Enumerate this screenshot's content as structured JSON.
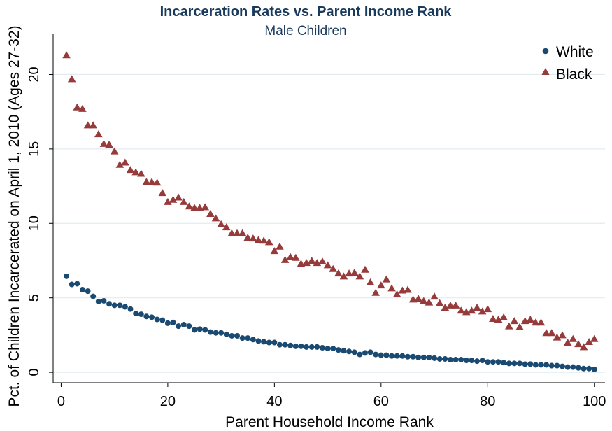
{
  "chart_data": {
    "type": "scatter",
    "title": "Incarceration Rates vs. Parent Income Rank",
    "subtitle": "Male Children",
    "xlabel": "Parent Household Income Rank",
    "ylabel": "Pct. of Children Incarcerated on April 1, 2010 (Ages 27-32)",
    "xlim": [
      -1.5,
      102
    ],
    "ylim": [
      -0.7,
      22.7
    ],
    "xticks": [
      0,
      20,
      40,
      60,
      80,
      100
    ],
    "yticks": [
      0,
      5,
      10,
      15,
      20
    ],
    "grid": true,
    "legend_position": "top-right",
    "colors": {
      "White": "#1a4a72",
      "Black": "#963b3b"
    },
    "series": [
      {
        "name": "White",
        "marker": "circle",
        "x": [
          1,
          2,
          3,
          4,
          5,
          6,
          7,
          8,
          9,
          10,
          11,
          12,
          13,
          14,
          15,
          16,
          17,
          18,
          19,
          20,
          21,
          22,
          23,
          24,
          25,
          26,
          27,
          28,
          29,
          30,
          31,
          32,
          33,
          34,
          35,
          36,
          37,
          38,
          39,
          40,
          41,
          42,
          43,
          44,
          45,
          46,
          47,
          48,
          49,
          50,
          51,
          52,
          53,
          54,
          55,
          56,
          57,
          58,
          59,
          60,
          61,
          62,
          63,
          64,
          65,
          66,
          67,
          68,
          69,
          70,
          71,
          72,
          73,
          74,
          75,
          76,
          77,
          78,
          79,
          80,
          81,
          82,
          83,
          84,
          85,
          86,
          87,
          88,
          89,
          90,
          91,
          92,
          93,
          94,
          95,
          96,
          97,
          98,
          99,
          100
        ],
        "values": [
          6.45,
          5.9,
          5.95,
          5.55,
          5.45,
          5.1,
          4.75,
          4.8,
          4.6,
          4.5,
          4.5,
          4.4,
          4.25,
          3.95,
          3.9,
          3.75,
          3.7,
          3.55,
          3.5,
          3.3,
          3.35,
          3.1,
          3.2,
          3.1,
          2.85,
          2.9,
          2.85,
          2.7,
          2.65,
          2.65,
          2.55,
          2.45,
          2.45,
          2.3,
          2.3,
          2.2,
          2.1,
          2.05,
          2.0,
          2.0,
          1.85,
          1.85,
          1.8,
          1.75,
          1.75,
          1.7,
          1.7,
          1.7,
          1.65,
          1.6,
          1.6,
          1.5,
          1.45,
          1.4,
          1.35,
          1.2,
          1.3,
          1.35,
          1.2,
          1.15,
          1.15,
          1.1,
          1.1,
          1.1,
          1.05,
          1.05,
          1.0,
          1.0,
          1.0,
          0.95,
          0.9,
          0.9,
          0.85,
          0.85,
          0.85,
          0.8,
          0.8,
          0.75,
          0.8,
          0.7,
          0.7,
          0.7,
          0.65,
          0.6,
          0.6,
          0.6,
          0.55,
          0.55,
          0.5,
          0.5,
          0.5,
          0.45,
          0.45,
          0.4,
          0.35,
          0.35,
          0.3,
          0.25,
          0.25,
          0.2
        ]
      },
      {
        "name": "Black",
        "marker": "triangle",
        "x": [
          1,
          2,
          3,
          4,
          5,
          6,
          7,
          8,
          9,
          10,
          11,
          12,
          13,
          14,
          15,
          16,
          17,
          18,
          19,
          20,
          21,
          22,
          23,
          24,
          25,
          26,
          27,
          28,
          29,
          30,
          31,
          32,
          33,
          34,
          35,
          36,
          37,
          38,
          39,
          40,
          41,
          42,
          43,
          44,
          45,
          46,
          47,
          48,
          49,
          50,
          51,
          52,
          53,
          54,
          55,
          56,
          57,
          58,
          59,
          60,
          61,
          62,
          63,
          64,
          65,
          66,
          67,
          68,
          69,
          70,
          71,
          72,
          73,
          74,
          75,
          76,
          77,
          78,
          79,
          80,
          81,
          82,
          83,
          84,
          85,
          86,
          87,
          88,
          89,
          90,
          91,
          92,
          93,
          94,
          95,
          96,
          97,
          98,
          99,
          100
        ],
        "values": [
          21.3,
          19.7,
          17.8,
          17.7,
          16.6,
          16.6,
          16.0,
          15.35,
          15.3,
          14.85,
          13.95,
          14.1,
          13.6,
          13.45,
          13.35,
          12.8,
          12.8,
          12.75,
          12.05,
          11.45,
          11.6,
          11.75,
          11.45,
          11.15,
          11.05,
          11.05,
          11.1,
          10.65,
          10.35,
          9.95,
          9.75,
          9.35,
          9.35,
          9.35,
          9.05,
          9.0,
          8.9,
          8.85,
          8.75,
          8.15,
          8.45,
          7.55,
          7.75,
          7.7,
          7.3,
          7.35,
          7.5,
          7.35,
          7.45,
          7.2,
          6.95,
          6.65,
          6.45,
          6.65,
          6.7,
          6.45,
          6.9,
          6.05,
          5.35,
          5.85,
          6.25,
          5.65,
          5.25,
          5.5,
          5.55,
          4.9,
          4.95,
          4.8,
          4.7,
          5.1,
          4.65,
          4.35,
          4.5,
          4.5,
          4.15,
          4.05,
          4.15,
          4.35,
          4.1,
          4.25,
          3.6,
          3.55,
          3.7,
          3.1,
          3.45,
          3.05,
          3.45,
          3.55,
          3.35,
          3.35,
          2.65,
          2.65,
          2.35,
          2.5,
          2.0,
          2.25,
          1.9,
          1.7,
          2.05,
          2.25
        ]
      }
    ]
  }
}
